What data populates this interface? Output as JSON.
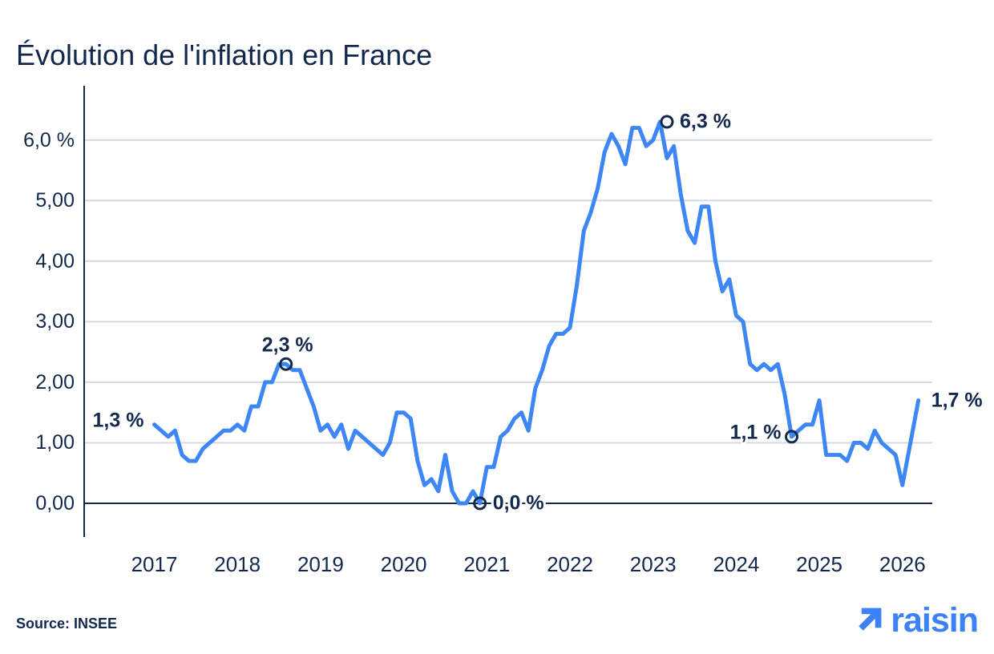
{
  "header": {
    "title": "Évolution de l'inflation en France"
  },
  "footer": {
    "source_label": "Source: INSEE",
    "logo_text": "raisin"
  },
  "chart_data": {
    "type": "line",
    "title": "Évolution de l'inflation en France",
    "unit": "%",
    "source": "INSEE",
    "grid": "horizontal",
    "legend": "none",
    "ylim": [
      0,
      6.6
    ],
    "y_ticks": [
      {
        "value": 6,
        "label": "6,0 %"
      },
      {
        "value": 5,
        "label": "5,00"
      },
      {
        "value": 4,
        "label": "4,00"
      },
      {
        "value": 3,
        "label": "3,00"
      },
      {
        "value": 2,
        "label": "2,00"
      },
      {
        "value": 1,
        "label": "1,00"
      },
      {
        "value": 0,
        "label": "0,00"
      }
    ],
    "x_ticks": [
      "2017",
      "2018",
      "2019",
      "2020",
      "2021",
      "2022",
      "2023",
      "2024",
      "2025",
      "2026"
    ],
    "series": [
      {
        "start": "2017-01",
        "frequency": "monthly",
        "values": [
          1.3,
          1.2,
          1.1,
          1.2,
          0.8,
          0.7,
          0.7,
          0.9,
          1.0,
          1.1,
          1.2,
          1.2,
          1.3,
          1.2,
          1.6,
          1.6,
          2.0,
          2.0,
          2.3,
          2.3,
          2.2,
          2.2,
          1.9,
          1.6,
          1.2,
          1.3,
          1.1,
          1.3,
          0.9,
          1.2,
          1.1,
          1.0,
          0.9,
          0.8,
          1.0,
          1.5,
          1.5,
          1.4,
          0.7,
          0.3,
          0.4,
          0.2,
          0.8,
          0.2,
          0.0,
          0.0,
          0.2,
          0.0,
          0.6,
          0.6,
          1.1,
          1.2,
          1.4,
          1.5,
          1.2,
          1.9,
          2.2,
          2.6,
          2.8,
          2.8,
          2.9,
          3.6,
          4.5,
          4.8,
          5.2,
          5.8,
          6.1,
          5.9,
          5.6,
          6.2,
          6.2,
          5.9,
          6.0,
          6.3,
          5.7,
          5.9,
          5.1,
          4.5,
          4.3,
          4.9,
          4.9,
          4.0,
          3.5,
          3.7,
          3.1,
          3.0,
          2.3,
          2.2,
          2.3,
          2.2,
          2.3,
          1.8,
          1.1,
          1.2,
          1.3,
          1.3,
          1.7,
          0.8,
          0.8,
          0.8,
          0.7,
          1.0,
          1.0,
          0.9,
          1.2,
          1.0,
          0.9,
          0.8,
          0.3
        ],
        "final_point": {
          "months_after_start": 110.3,
          "value": 1.7
        }
      }
    ],
    "annotations": [
      {
        "text": "1,3 %",
        "value": 1.3,
        "month_index": 0,
        "placement": "left",
        "marker": false
      },
      {
        "text": "2,3 %",
        "value": 2.3,
        "month_index": 19,
        "placement": "above",
        "marker": true
      },
      {
        "text": "0,0 %",
        "value": 0.0,
        "month_index": 47,
        "placement": "right",
        "marker": true
      },
      {
        "text": "6,3 %",
        "value": 6.3,
        "month_index": 74,
        "placement": "right",
        "marker": true
      },
      {
        "text": "1,1 %",
        "value": 1.1,
        "month_index": 92,
        "placement": "left",
        "marker": true
      },
      {
        "text": "1,7 %",
        "value": 1.7,
        "month_index": 110.3,
        "placement": "right",
        "marker": false
      }
    ],
    "colors": {
      "line": "#3C86F6",
      "axis": "#12294D",
      "text": "#12294D",
      "gridline": "#D5D9E2",
      "logo": "#3C82F6"
    }
  }
}
